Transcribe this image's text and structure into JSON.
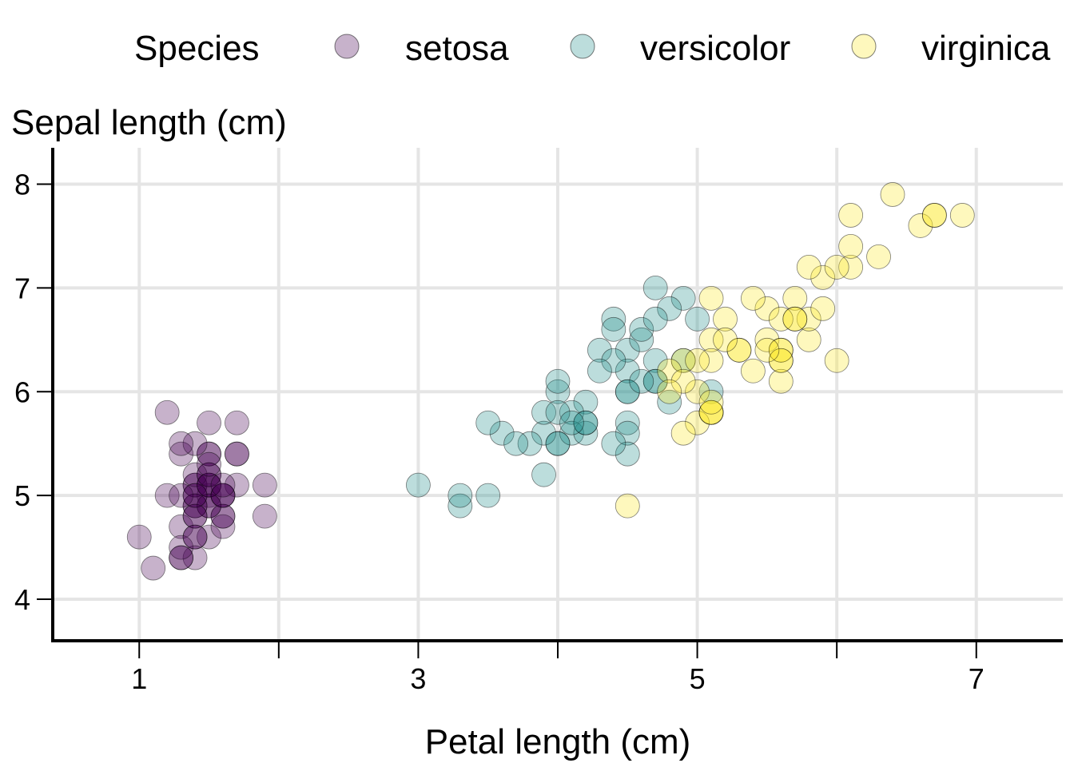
{
  "colors": {
    "setosa": "#440154",
    "versicolor": "#21908c",
    "virginica": "#fde725",
    "grid": "#e5e5e5",
    "axis": "#000000"
  },
  "chart_data": {
    "type": "scatter",
    "xlabel": "Petal length (cm)",
    "ylabel": "Sepal length (cm)",
    "xlim": [
      0.38,
      7.62
    ],
    "ylim": [
      3.6,
      8.35
    ],
    "x_ticks": [
      1,
      2,
      3,
      4,
      5,
      6,
      7
    ],
    "x_tick_labels": [
      "1",
      "",
      "3",
      "",
      "5",
      "",
      "7"
    ],
    "y_ticks": [
      4,
      5,
      6,
      7,
      8
    ],
    "y_tick_labels": [
      "4",
      "5",
      "6",
      "7",
      "8"
    ],
    "grid": true,
    "point_opacity": 0.3,
    "legend": {
      "title": "Species",
      "position": "top",
      "entries": [
        "setosa",
        "versicolor",
        "virginica"
      ]
    },
    "series": [
      {
        "name": "setosa",
        "x": [
          1.4,
          1.4,
          1.3,
          1.5,
          1.4,
          1.7,
          1.4,
          1.5,
          1.4,
          1.5,
          1.5,
          1.6,
          1.4,
          1.1,
          1.2,
          1.5,
          1.3,
          1.4,
          1.7,
          1.5,
          1.7,
          1.5,
          1.0,
          1.7,
          1.9,
          1.6,
          1.6,
          1.5,
          1.4,
          1.6,
          1.6,
          1.5,
          1.5,
          1.4,
          1.5,
          1.2,
          1.3,
          1.4,
          1.3,
          1.5,
          1.3,
          1.3,
          1.3,
          1.6,
          1.9,
          1.4,
          1.6,
          1.4,
          1.5,
          1.4
        ],
        "y": [
          5.1,
          4.9,
          4.7,
          4.6,
          5.0,
          5.4,
          4.6,
          5.0,
          4.4,
          4.9,
          5.4,
          4.8,
          4.8,
          4.3,
          5.8,
          5.7,
          5.4,
          5.1,
          5.7,
          5.1,
          5.4,
          5.1,
          4.6,
          5.1,
          4.8,
          5.0,
          5.0,
          5.2,
          5.2,
          4.7,
          4.8,
          5.4,
          5.2,
          5.5,
          4.9,
          5.0,
          5.5,
          4.9,
          4.4,
          5.1,
          5.0,
          4.5,
          4.4,
          5.0,
          5.1,
          4.8,
          5.1,
          4.6,
          5.3,
          5.0
        ]
      },
      {
        "name": "versicolor",
        "x": [
          4.7,
          4.5,
          4.9,
          4.0,
          4.6,
          4.5,
          4.7,
          3.3,
          4.6,
          3.9,
          3.5,
          4.2,
          4.0,
          4.7,
          3.6,
          4.4,
          4.5,
          4.1,
          4.5,
          3.9,
          4.8,
          4.0,
          4.9,
          4.7,
          4.3,
          4.4,
          4.8,
          5.0,
          4.5,
          3.5,
          3.8,
          3.7,
          3.9,
          5.1,
          4.5,
          4.5,
          4.7,
          4.4,
          4.1,
          4.0,
          4.4,
          4.6,
          4.0,
          3.3,
          4.2,
          4.2,
          4.2,
          4.3,
          3.0,
          4.1
        ],
        "y": [
          7.0,
          6.4,
          6.9,
          5.5,
          6.5,
          5.7,
          6.3,
          4.9,
          6.6,
          5.2,
          5.0,
          5.9,
          6.0,
          6.1,
          5.6,
          6.7,
          5.6,
          5.8,
          6.2,
          5.6,
          5.9,
          6.1,
          6.3,
          6.1,
          6.4,
          6.6,
          6.8,
          6.7,
          6.0,
          5.7,
          5.5,
          5.5,
          5.8,
          6.0,
          5.4,
          6.0,
          6.7,
          6.3,
          5.6,
          5.5,
          5.5,
          6.1,
          5.8,
          5.0,
          5.6,
          5.7,
          5.7,
          6.2,
          5.1,
          5.7
        ]
      },
      {
        "name": "virginica",
        "x": [
          6.0,
          5.1,
          5.9,
          5.6,
          5.8,
          6.6,
          4.5,
          6.3,
          5.8,
          6.1,
          5.1,
          5.3,
          5.5,
          5.0,
          5.1,
          5.3,
          5.5,
          6.7,
          6.9,
          5.0,
          5.7,
          4.9,
          6.7,
          4.9,
          5.7,
          6.0,
          4.8,
          4.9,
          5.6,
          5.8,
          6.1,
          6.4,
          5.6,
          5.1,
          5.6,
          6.1,
          5.6,
          5.5,
          4.8,
          5.4,
          5.6,
          5.1,
          5.1,
          5.9,
          5.7,
          5.2,
          5.0,
          5.2,
          5.4,
          5.1
        ],
        "y": [
          6.3,
          5.8,
          7.1,
          6.3,
          6.5,
          7.6,
          4.9,
          7.3,
          6.7,
          7.2,
          6.5,
          6.4,
          6.8,
          5.7,
          5.8,
          6.4,
          6.5,
          7.7,
          7.7,
          6.0,
          6.9,
          5.6,
          7.7,
          6.3,
          6.7,
          7.2,
          6.2,
          6.1,
          6.4,
          7.2,
          7.4,
          7.9,
          6.4,
          6.3,
          6.1,
          7.7,
          6.3,
          6.4,
          6.0,
          6.9,
          6.7,
          6.9,
          5.8,
          6.8,
          6.7,
          6.7,
          6.3,
          6.5,
          6.2,
          5.9
        ]
      }
    ]
  }
}
